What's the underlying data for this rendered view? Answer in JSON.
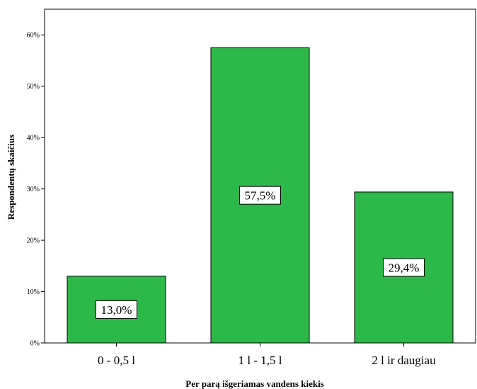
{
  "chart_data": {
    "type": "bar",
    "title": "",
    "xlabel": "Per parą išgeriamas vandens kiekis",
    "ylabel": "Respondentų skaičius",
    "categories": [
      "0 - 0,5 l",
      "1 l - 1,5 l",
      "2 l ir daugiau"
    ],
    "values": [
      13.0,
      57.5,
      29.4
    ],
    "data_labels": [
      "13,0%",
      "57,5%",
      "29,4%"
    ],
    "ylim": [
      0,
      65
    ],
    "y_ticks": [
      0,
      10,
      20,
      30,
      40,
      50,
      60
    ],
    "y_tick_labels": [
      "0%",
      "10%",
      "20%",
      "30%",
      "40%",
      "50%",
      "60%"
    ],
    "bar_color": "#2db84a",
    "grid": false,
    "legend": "none"
  }
}
